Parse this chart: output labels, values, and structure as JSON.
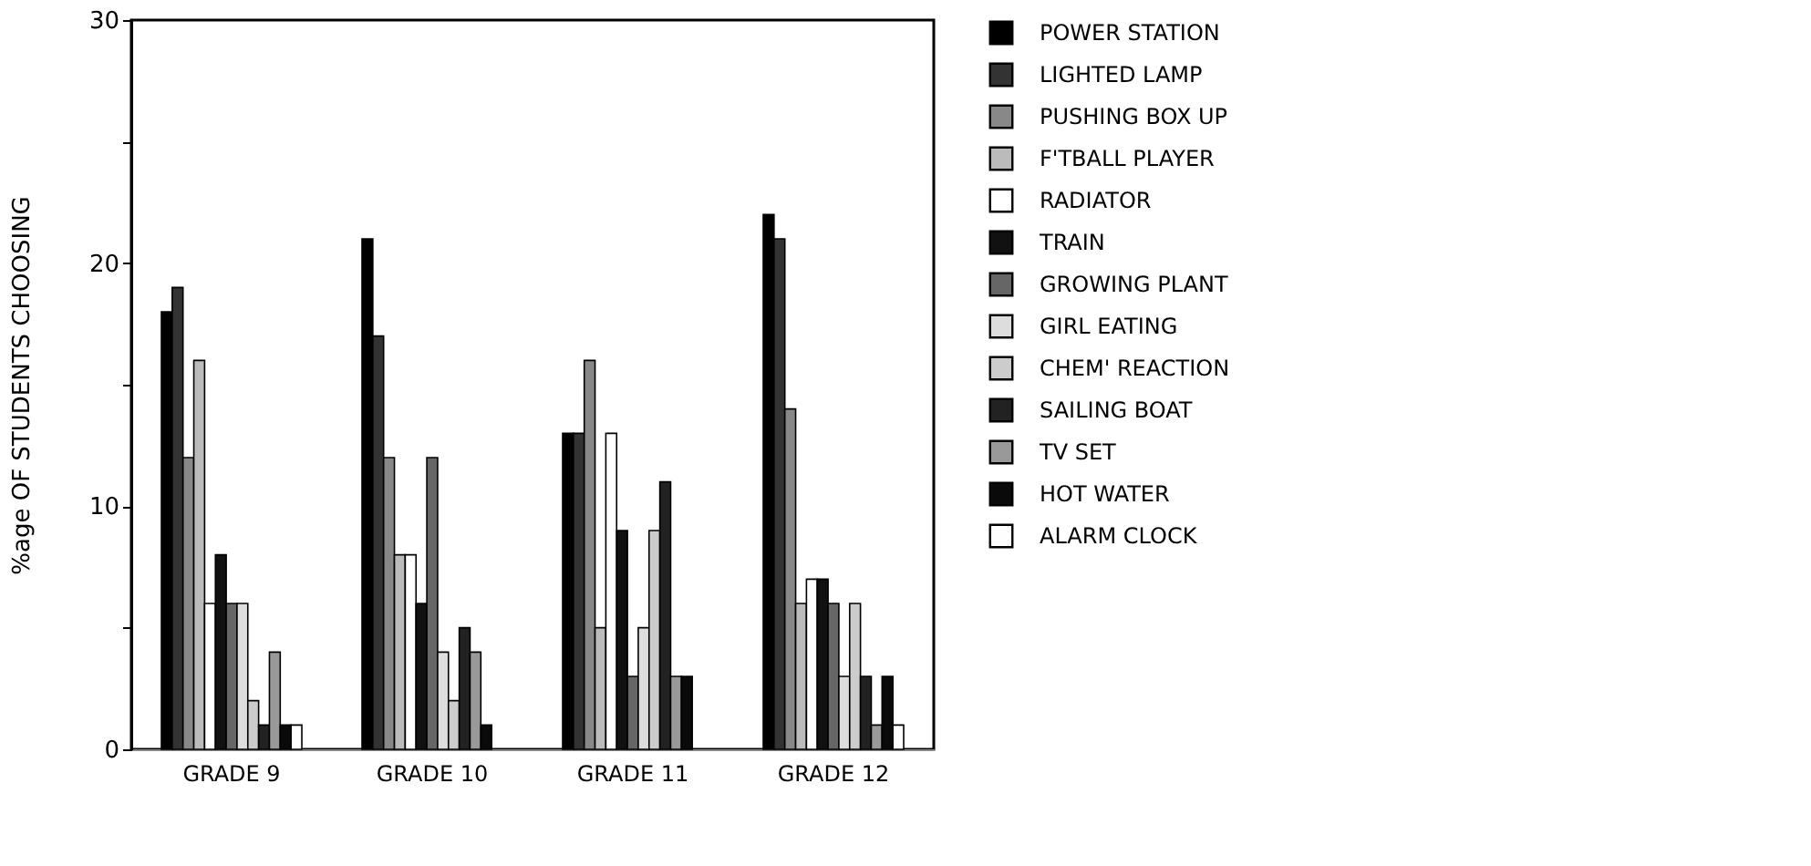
{
  "chart_data": {
    "type": "bar",
    "ylabel": "%age OF STUDENTS CHOOSING",
    "categories": [
      "GRADE 9",
      "GRADE 10",
      "GRADE 11",
      "GRADE 12"
    ],
    "series": [
      {
        "name": "POWER STATION",
        "color": "#000000",
        "values": [
          18,
          21,
          13,
          22
        ]
      },
      {
        "name": "LIGHTED LAMP",
        "color": "#333333",
        "values": [
          19,
          17,
          13,
          21
        ]
      },
      {
        "name": "PUSHING BOX  UP",
        "color": "#888888",
        "values": [
          12,
          12,
          16,
          14
        ]
      },
      {
        "name": "F'TBALL PLAYER",
        "color": "#bbbbbb",
        "values": [
          16,
          8,
          5,
          6
        ]
      },
      {
        "name": "RADIATOR",
        "color": "#ffffff",
        "values": [
          6,
          8,
          13,
          7
        ]
      },
      {
        "name": "TRAIN",
        "color": "#111111",
        "values": [
          8,
          6,
          9,
          7
        ]
      },
      {
        "name": "GROWING PLANT",
        "color": "#666666",
        "values": [
          6,
          12,
          3,
          6
        ]
      },
      {
        "name": "GIRL EATING",
        "color": "#dddddd",
        "values": [
          6,
          4,
          5,
          3
        ]
      },
      {
        "name": "CHEM' REACTION",
        "color": "#cccccc",
        "values": [
          2,
          2,
          9,
          6
        ]
      },
      {
        "name": "SAILING BOAT",
        "color": "#222222",
        "values": [
          1,
          5,
          11,
          3
        ]
      },
      {
        "name": "TV SET",
        "color": "#999999",
        "values": [
          4,
          4,
          3,
          1
        ]
      },
      {
        "name": "HOT WATER",
        "color": "#0a0a0a",
        "values": [
          1,
          1,
          3,
          3
        ]
      },
      {
        "name": "ALARM CLOCK",
        "color": "#fefefe",
        "values": [
          1,
          0,
          0,
          1
        ]
      }
    ],
    "ylim": [
      0,
      30
    ],
    "yticks": [
      0,
      {
        "value": 5,
        "label": null
      },
      10,
      {
        "value": 15,
        "label": null
      },
      20,
      {
        "value": 25,
        "label": null
      },
      30
    ],
    "grid": false,
    "legend": "right"
  }
}
